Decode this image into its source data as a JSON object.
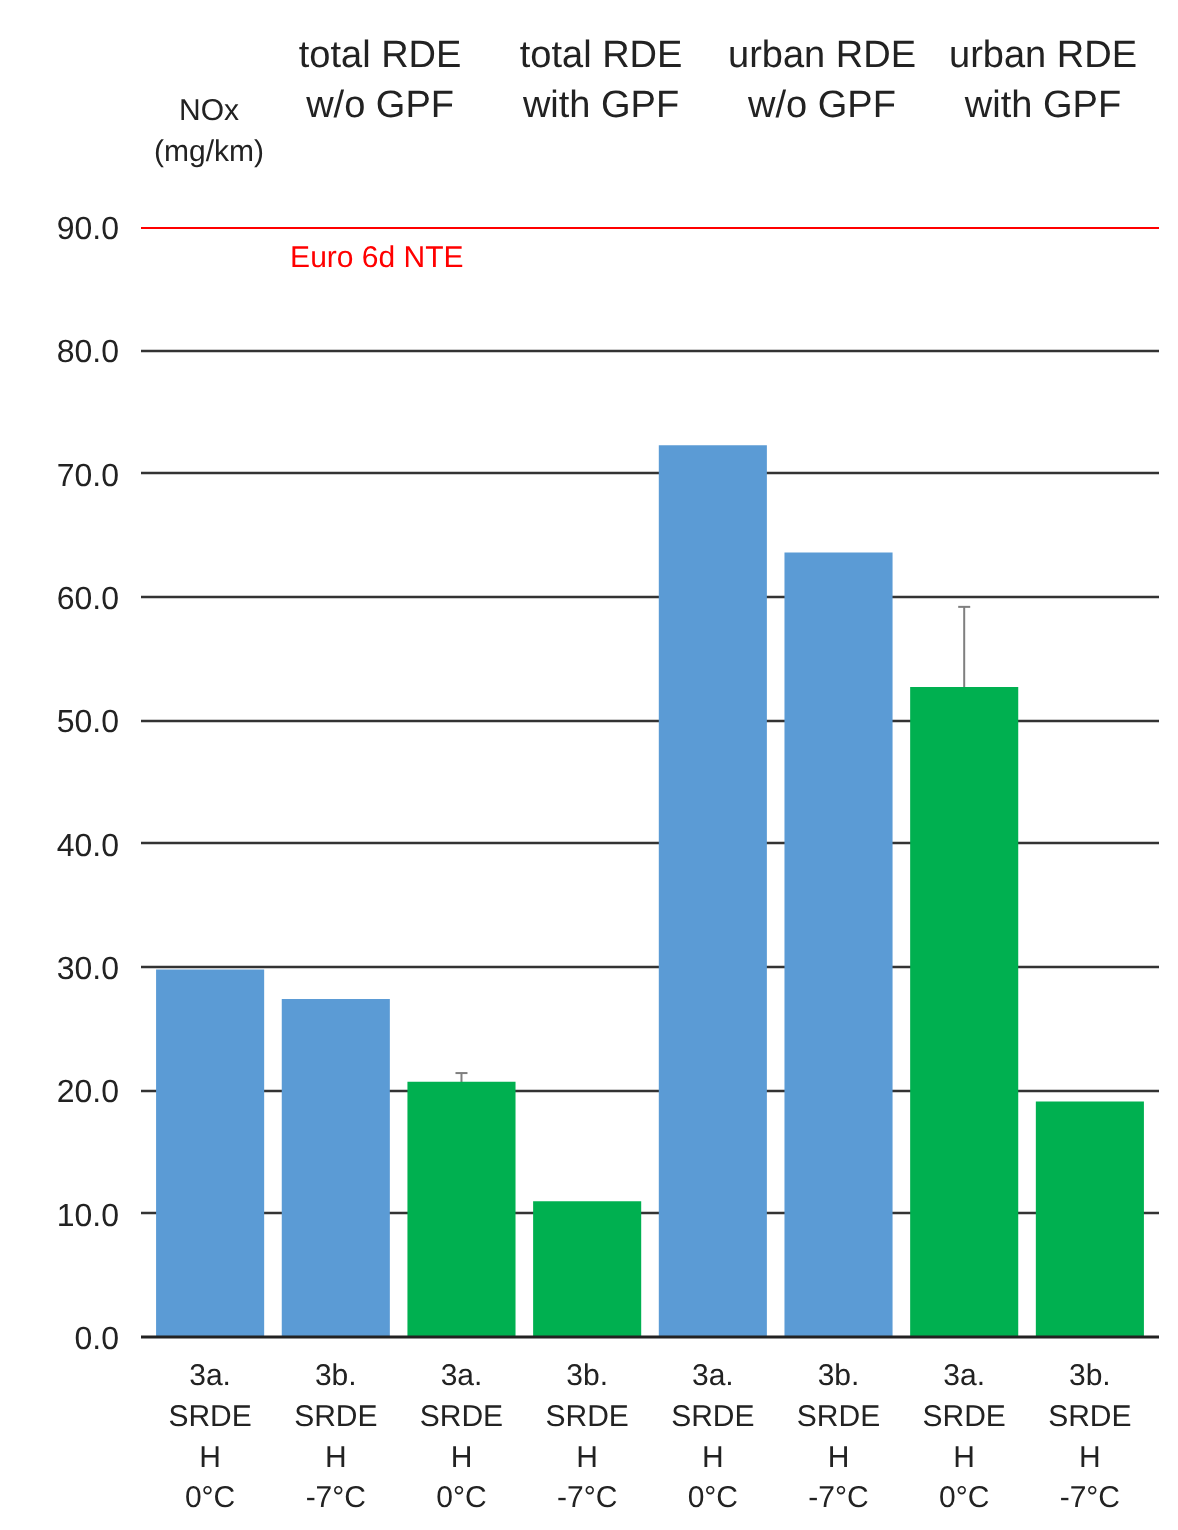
{
  "chart_data": {
    "type": "bar",
    "ylabel": "NOx\n(mg/km)",
    "categories": [
      "3a.\nSRDE\nH\n0°C",
      "3b.\nSRDE\nH\n-7°C",
      "3a.\nSRDE\nH\n0°C",
      "3b.\nSRDE\nH\n-7°C",
      "3a.\nSRDE\nH\n0°C",
      "3b.\nSRDE\nH\n-7°C",
      "3a.\nSRDE\nH\n0°C",
      "3b.\nSRDE\nH\n-7°C"
    ],
    "values": [
      29.8,
      27.4,
      20.7,
      11.0,
      72.3,
      63.6,
      52.7,
      19.1
    ],
    "colors": [
      "#5b9bd5",
      "#5b9bd5",
      "#00b050",
      "#00b050",
      "#5b9bd5",
      "#5b9bd5",
      "#00b050",
      "#00b050"
    ],
    "errors": [
      null,
      null,
      0.7,
      null,
      null,
      null,
      6.5,
      null
    ],
    "annotations": [
      "total RDE\nw/o GPF",
      "total RDE\nwith GPF",
      "urban RDE\nw/o GPF",
      "urban RDE\nwith GPF"
    ],
    "ref_lines": [
      {
        "axis": "y",
        "value": 90,
        "label": "Euro 6d NTE",
        "color": "#ff0000"
      }
    ],
    "ylim": [
      0,
      90
    ],
    "yticks": [
      {
        "value": 0,
        "label": "0.0"
      },
      {
        "value": 10,
        "label": "10.0"
      },
      {
        "value": 20,
        "label": "20.0"
      },
      {
        "value": 30,
        "label": "30.0"
      },
      {
        "value": 40,
        "label": "40.0"
      },
      {
        "value": 50,
        "label": "50.0"
      },
      {
        "value": 60,
        "label": "60.0"
      },
      {
        "value": 70,
        "label": "70.0"
      },
      {
        "value": 80,
        "label": "80.0"
      },
      {
        "value": 90,
        "label": "90.0"
      }
    ],
    "grid": "y"
  }
}
